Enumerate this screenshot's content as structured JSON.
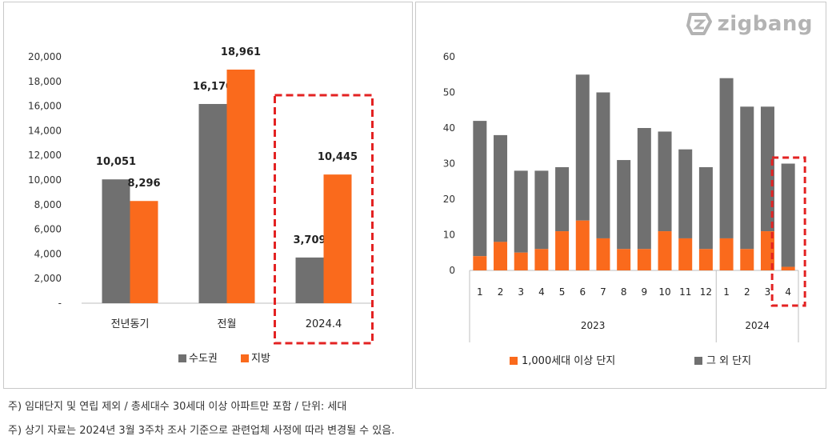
{
  "logo": {
    "text": "zigbang",
    "icon": "zigbang-logo-icon"
  },
  "footnotes": [
    "주) 임대단지 및 연립 제외 / 총세대수 30세대 이상 아파트만 포함 / 단위: 세대",
    "주) 상기 자료는 2024년 3월 3주차 조사 기준으로 관련업체 사정에 따라 변경될 수 있음."
  ],
  "colors": {
    "gray": "#707070",
    "orange": "#fa6a1c",
    "highlight": "#e32222"
  },
  "chart_data": [
    {
      "type": "bar",
      "categories": [
        "전년동기",
        "전월",
        "2024.4"
      ],
      "series": [
        {
          "name": "수도권",
          "values": [
            10051,
            16170,
            3709
          ]
        },
        {
          "name": "지방",
          "values": [
            8296,
            18961,
            10445
          ]
        }
      ],
      "data_labels": [
        [
          "10,051",
          "16,170",
          "3,709"
        ],
        [
          "8,296",
          "18,961",
          "10,445"
        ]
      ],
      "yticks": [
        "-",
        "2,000",
        "4,000",
        "6,000",
        "8,000",
        "10,000",
        "12,000",
        "14,000",
        "16,000",
        "18,000",
        "20,000"
      ],
      "ylim": [
        0,
        20000
      ],
      "legend_position": "bottom",
      "highlight_category": "2024.4",
      "grid": false
    },
    {
      "type": "bar",
      "stacked": true,
      "categories": [
        "1",
        "2",
        "3",
        "4",
        "5",
        "6",
        "7",
        "8",
        "9",
        "10",
        "11",
        "12",
        "1",
        "2",
        "3",
        "4"
      ],
      "groups": [
        {
          "label": "2023",
          "count": 12
        },
        {
          "label": "2024",
          "count": 4
        }
      ],
      "series": [
        {
          "name": "1,000세대 이상 단지",
          "values": [
            4,
            8,
            5,
            6,
            11,
            14,
            9,
            6,
            6,
            11,
            9,
            6,
            9,
            6,
            11,
            1
          ]
        },
        {
          "name": "그 외 단지",
          "values": [
            38,
            30,
            23,
            22,
            18,
            41,
            41,
            25,
            34,
            28,
            25,
            23,
            45,
            40,
            35,
            29
          ]
        }
      ],
      "yticks": [
        "0",
        "10",
        "20",
        "30",
        "40",
        "50",
        "60"
      ],
      "ylim": [
        0,
        60
      ],
      "legend_position": "bottom",
      "highlight_category_index": 15,
      "grid": false
    }
  ]
}
